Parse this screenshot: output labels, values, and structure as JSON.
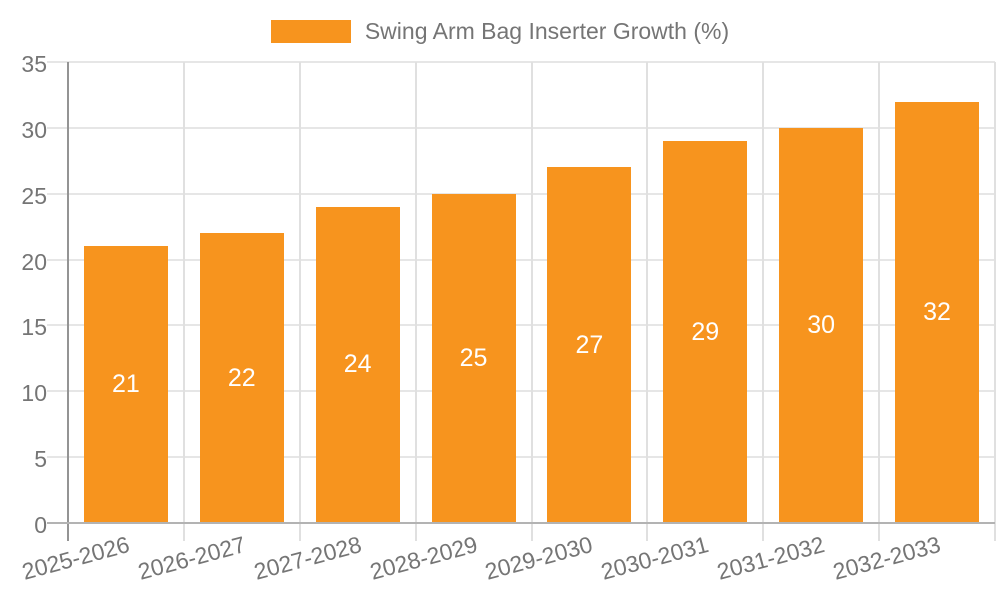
{
  "legend": {
    "label": "Swing Arm Bag Inserter Growth (%)"
  },
  "colors": {
    "bar": "#F7941E",
    "bar_label": "#FFFFFF",
    "axis_label": "#757575",
    "gridline_h": "#E6E6E6",
    "gridline_v": "#E0E0E0",
    "axis_line": "#949494",
    "baseline": "#B3B3B3"
  },
  "chart_data": {
    "type": "bar",
    "title": "",
    "series_name": "Swing Arm Bag Inserter Growth (%)",
    "categories": [
      "2025-2026",
      "2026-2027",
      "2027-2028",
      "2028-2029",
      "2029-2030",
      "2030-2031",
      "2031-2032",
      "2032-2033"
    ],
    "values": [
      21,
      22,
      24,
      25,
      27,
      29,
      30,
      32
    ],
    "bar_labels": [
      21,
      22,
      24,
      25,
      27,
      29,
      30,
      32
    ],
    "xlabel": "",
    "ylabel": "",
    "ylim": [
      0,
      35
    ],
    "yticks": [
      0,
      5,
      10,
      15,
      20,
      25,
      30,
      35
    ],
    "grid": true,
    "legend_position": "top",
    "x_label_rotation_deg": -15
  }
}
